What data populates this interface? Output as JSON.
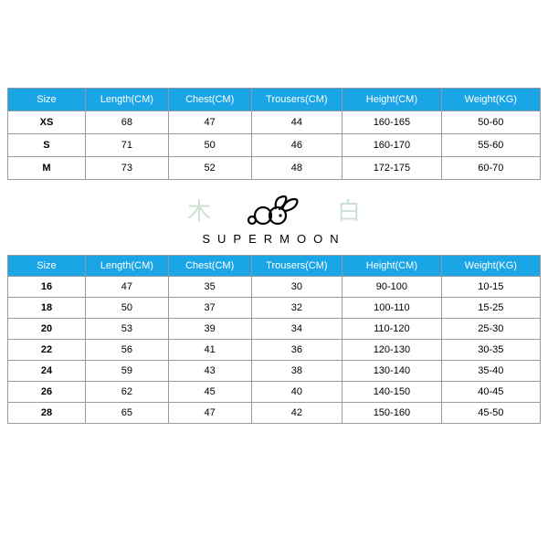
{
  "palette": {
    "header_bg": "#1aa6e6",
    "header_text": "#ffffff",
    "border": "#9a9a9a",
    "cell_bg": "#ffffff",
    "cell_text": "#000000",
    "brand_char_color": "#cde1d4",
    "icon_stroke": "#000000"
  },
  "columns": [
    {
      "key": "size",
      "label": "Size"
    },
    {
      "key": "length",
      "label": "Length(CM)"
    },
    {
      "key": "chest",
      "label": "Chest(CM)"
    },
    {
      "key": "trousers",
      "label": "Trousers(CM)"
    },
    {
      "key": "height",
      "label": "Height(CM)"
    },
    {
      "key": "weight",
      "label": "Weight(KG)"
    }
  ],
  "adult_rows": [
    {
      "size": "XS",
      "length": "68",
      "chest": "47",
      "trousers": "44",
      "height": "160-165",
      "weight": "50-60"
    },
    {
      "size": "S",
      "length": "71",
      "chest": "50",
      "trousers": "46",
      "height": "160-170",
      "weight": "55-60"
    },
    {
      "size": "M",
      "length": "73",
      "chest": "52",
      "trousers": "48",
      "height": "172-175",
      "weight": "60-70"
    }
  ],
  "kids_rows": [
    {
      "size": "16",
      "length": "47",
      "chest": "35",
      "trousers": "30",
      "height": "90-100",
      "weight": "10-15"
    },
    {
      "size": "18",
      "length": "50",
      "chest": "37",
      "trousers": "32",
      "height": "100-110",
      "weight": "15-25"
    },
    {
      "size": "20",
      "length": "53",
      "chest": "39",
      "trousers": "34",
      "height": "110-120",
      "weight": "25-30"
    },
    {
      "size": "22",
      "length": "56",
      "chest": "41",
      "trousers": "36",
      "height": "120-130",
      "weight": "30-35"
    },
    {
      "size": "24",
      "length": "59",
      "chest": "43",
      "trousers": "38",
      "height": "130-140",
      "weight": "35-40"
    },
    {
      "size": "26",
      "length": "62",
      "chest": "45",
      "trousers": "40",
      "height": "140-150",
      "weight": "40-45"
    },
    {
      "size": "28",
      "length": "65",
      "chest": "47",
      "trousers": "42",
      "height": "150-160",
      "weight": "45-50"
    }
  ],
  "brand": {
    "left_char": "木",
    "right_char": "白",
    "name": "SUPERMOON"
  }
}
